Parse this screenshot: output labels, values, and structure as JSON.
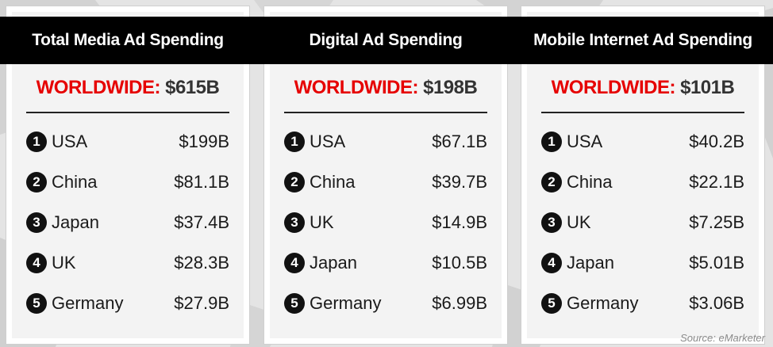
{
  "colors": {
    "header_bg": "#000000",
    "header_text": "#ffffff",
    "worldwide_label": "#e60000",
    "worldwide_value": "#333333",
    "rank_badge": "#111111",
    "background": "#e4e4e4"
  },
  "source": "Source: eMarketer",
  "chart_data": [
    {
      "type": "table",
      "title": "Total Media Ad Spending",
      "total_label": "WORLDWIDE:",
      "total_value": "$615B",
      "rows": [
        {
          "rank": "1",
          "country": "USA",
          "value": "$199B"
        },
        {
          "rank": "2",
          "country": "China",
          "value": "$81.1B"
        },
        {
          "rank": "3",
          "country": "Japan",
          "value": "$37.4B"
        },
        {
          "rank": "4",
          "country": "UK",
          "value": "$28.3B"
        },
        {
          "rank": "5",
          "country": "Germany",
          "value": "$27.9B"
        }
      ]
    },
    {
      "type": "table",
      "title": "Digital Ad Spending",
      "total_label": "WORLDWIDE:",
      "total_value": "$198B",
      "rows": [
        {
          "rank": "1",
          "country": "USA",
          "value": "$67.1B"
        },
        {
          "rank": "2",
          "country": "China",
          "value": "$39.7B"
        },
        {
          "rank": "3",
          "country": "UK",
          "value": "$14.9B"
        },
        {
          "rank": "4",
          "country": "Japan",
          "value": "$10.5B"
        },
        {
          "rank": "5",
          "country": "Germany",
          "value": "$6.99B"
        }
      ]
    },
    {
      "type": "table",
      "title": "Mobile Internet Ad Spending",
      "total_label": "WORLDWIDE:",
      "total_value": "$101B",
      "rows": [
        {
          "rank": "1",
          "country": "USA",
          "value": "$40.2B"
        },
        {
          "rank": "2",
          "country": "China",
          "value": "$22.1B"
        },
        {
          "rank": "3",
          "country": "UK",
          "value": "$7.25B"
        },
        {
          "rank": "4",
          "country": "Japan",
          "value": "$5.01B"
        },
        {
          "rank": "5",
          "country": "Germany",
          "value": "$3.06B"
        }
      ]
    }
  ]
}
